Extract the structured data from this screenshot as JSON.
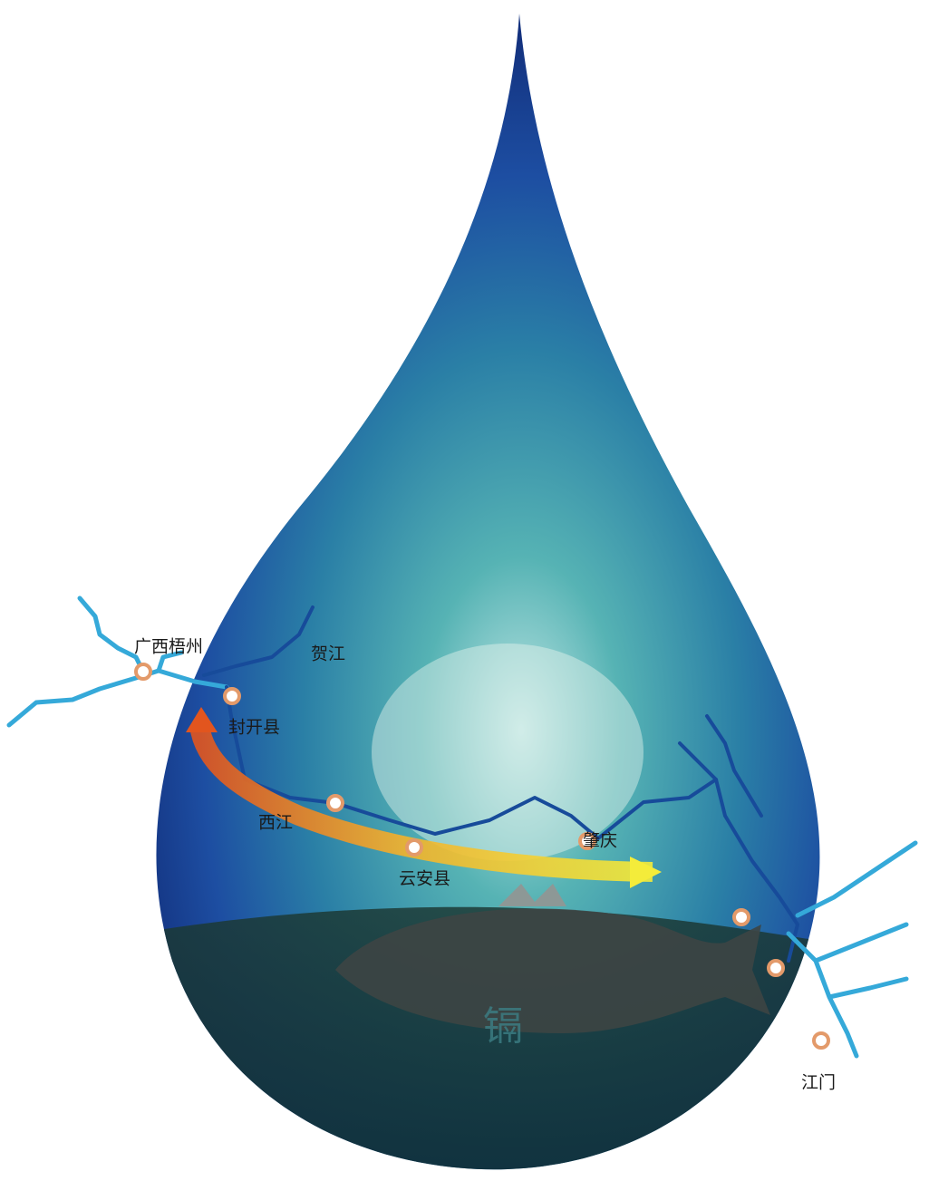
{
  "map": {
    "places": [
      {
        "label": "广西梧州"
      },
      {
        "label": "封开县"
      },
      {
        "label": "云安县"
      },
      {
        "label": "肇庆"
      },
      {
        "label": "江门"
      }
    ],
    "rivers": [
      {
        "label": "贺江"
      },
      {
        "label": "西江"
      }
    ],
    "fish_text": "镉"
  }
}
